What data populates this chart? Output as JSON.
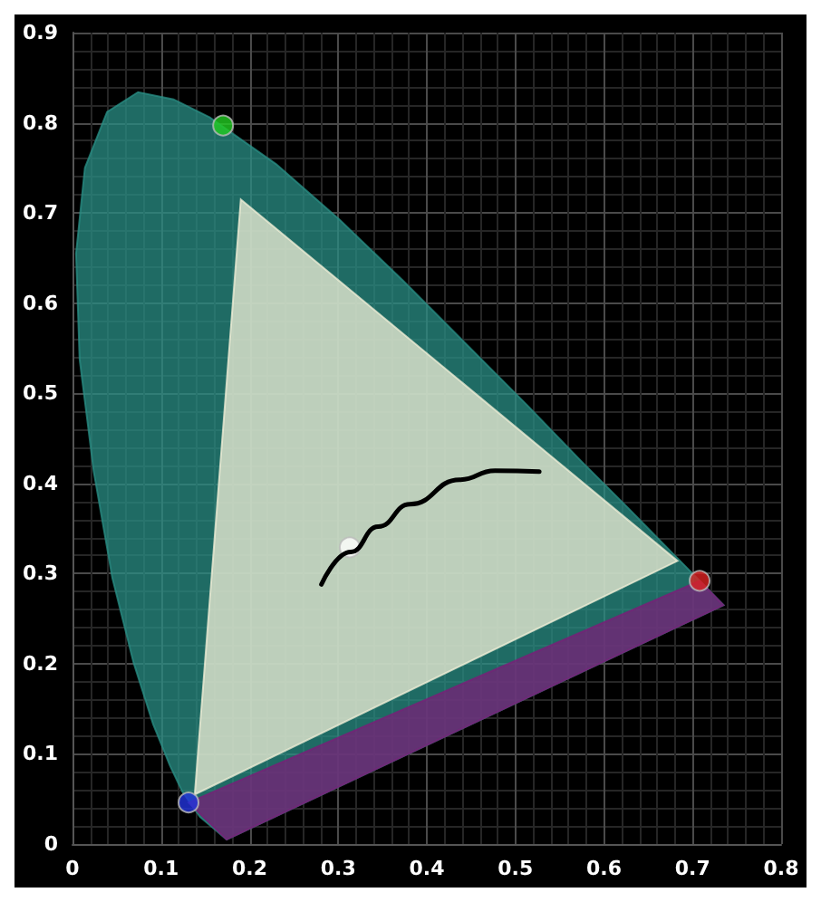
{
  "chart_data": {
    "type": "line",
    "xlim": [
      0,
      0.8
    ],
    "ylim": [
      0,
      0.9
    ],
    "xticks": [
      0,
      0.1,
      0.2,
      0.3,
      0.4,
      0.5,
      0.6,
      0.7,
      0.8
    ],
    "yticks": [
      0,
      0.1,
      0.2,
      0.3,
      0.4,
      0.5,
      0.6,
      0.7,
      0.8,
      0.9
    ],
    "grid": true,
    "series": [
      {
        "type": "area",
        "color": "#2a8f86",
        "x": [
          0.174,
          0.144,
          0.124,
          0.11,
          0.091,
          0.069,
          0.045,
          0.024,
          0.008,
          0.004,
          0.014,
          0.039,
          0.074,
          0.114,
          0.155,
          0.23,
          0.302,
          0.373,
          0.444,
          0.513,
          0.575,
          0.627,
          0.692,
          0.735
        ],
        "values": [
          0.005,
          0.03,
          0.058,
          0.087,
          0.133,
          0.201,
          0.295,
          0.413,
          0.538,
          0.655,
          0.75,
          0.812,
          0.834,
          0.826,
          0.806,
          0.754,
          0.692,
          0.625,
          0.555,
          0.487,
          0.424,
          0.373,
          0.308,
          0.265
        ]
      },
      {
        "type": "area",
        "color": "#7a1f78",
        "x": [
          0.131,
          0.174,
          0.735,
          0.708
        ],
        "values": [
          0.046,
          0.005,
          0.265,
          0.292
        ]
      },
      {
        "type": "area",
        "color": "#f3f0d8",
        "x": [
          0.19,
          0.683,
          0.138
        ],
        "values": [
          0.715,
          0.314,
          0.055
        ]
      },
      {
        "color": "#000000",
        "x": [
          0.281,
          0.314,
          0.345,
          0.381,
          0.437,
          0.477,
          0.527
        ],
        "values": [
          0.288,
          0.324,
          0.352,
          0.377,
          0.404,
          0.414,
          0.413
        ]
      },
      {
        "type": "scatter",
        "marker": "circle",
        "x": [
          0.17,
          0.708,
          0.131,
          0.313
        ],
        "values": [
          0.797,
          0.292,
          0.046,
          0.329
        ],
        "colors": [
          "#22cc22",
          "#dd2222",
          "#2233dd",
          "#ffffff"
        ]
      }
    ]
  }
}
